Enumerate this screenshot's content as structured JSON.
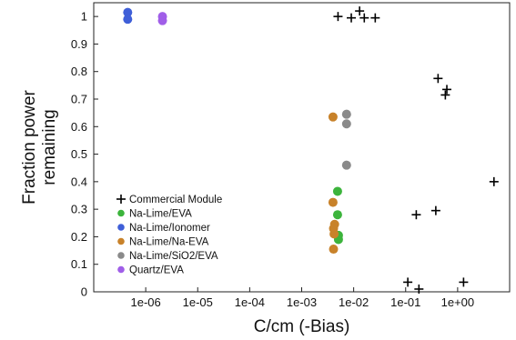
{
  "chart_data": {
    "type": "scatter",
    "title": "",
    "xlabel": "C/cm (-Bias)",
    "ylabel": [
      "Fraction power",
      "remaining"
    ],
    "x_scale": "log",
    "xlim": [
      1e-07,
      10
    ],
    "ylim": [
      0,
      1.05
    ],
    "grid": false,
    "legend_placement": "bottom-left",
    "x_ticks": [
      {
        "value": 1e-06,
        "label": "1e-06"
      },
      {
        "value": 1e-05,
        "label": "1e-05"
      },
      {
        "value": 0.0001,
        "label": "1e-04"
      },
      {
        "value": 0.001,
        "label": "1e-03"
      },
      {
        "value": 0.01,
        "label": "1e-02"
      },
      {
        "value": 0.1,
        "label": "1e-01"
      },
      {
        "value": 1,
        "label": "1e+00"
      }
    ],
    "y_ticks": [
      {
        "value": 0,
        "label": "0"
      },
      {
        "value": 0.1,
        "label": "0.1"
      },
      {
        "value": 0.2,
        "label": "0.2"
      },
      {
        "value": 0.3,
        "label": "0.3"
      },
      {
        "value": 0.4,
        "label": "0.4"
      },
      {
        "value": 0.5,
        "label": "0.5"
      },
      {
        "value": 0.6,
        "label": "0.6"
      },
      {
        "value": 0.7,
        "label": "0.7"
      },
      {
        "value": 0.8,
        "label": "0.8"
      },
      {
        "value": 0.9,
        "label": "0.9"
      },
      {
        "value": 1,
        "label": "1"
      }
    ],
    "series": [
      {
        "name": "Commercial Module",
        "marker": "plus",
        "color": "#000000",
        "points": [
          {
            "x": 0.005,
            "y": 1.0
          },
          {
            "x": 0.009,
            "y": 0.995
          },
          {
            "x": 0.013,
            "y": 1.02
          },
          {
            "x": 0.016,
            "y": 0.995
          },
          {
            "x": 0.026,
            "y": 0.995
          },
          {
            "x": 0.42,
            "y": 0.775
          },
          {
            "x": 0.62,
            "y": 0.735
          },
          {
            "x": 0.58,
            "y": 0.715
          },
          {
            "x": 5.0,
            "y": 0.4
          },
          {
            "x": 0.16,
            "y": 0.28
          },
          {
            "x": 0.38,
            "y": 0.295
          },
          {
            "x": 0.11,
            "y": 0.035
          },
          {
            "x": 0.18,
            "y": 0.01
          },
          {
            "x": 1.3,
            "y": 0.035
          }
        ]
      },
      {
        "name": "Na-Lime/EVA",
        "marker": "circle",
        "color": "#3cb43c",
        "points": [
          {
            "x": 0.0049,
            "y": 0.365
          },
          {
            "x": 0.0049,
            "y": 0.28
          },
          {
            "x": 0.0051,
            "y": 0.205
          },
          {
            "x": 0.0051,
            "y": 0.19
          }
        ]
      },
      {
        "name": "Na-Lime/Ionomer",
        "marker": "circle",
        "color": "#3f5fd8",
        "points": [
          {
            "x": 4.5e-07,
            "y": 1.015
          },
          {
            "x": 4.5e-07,
            "y": 0.99
          }
        ]
      },
      {
        "name": "Na-Lime/Na-EVA",
        "marker": "circle",
        "color": "#c8822a",
        "points": [
          {
            "x": 0.004,
            "y": 0.635
          },
          {
            "x": 0.004,
            "y": 0.325
          },
          {
            "x": 0.0043,
            "y": 0.245
          },
          {
            "x": 0.0041,
            "y": 0.23
          },
          {
            "x": 0.0042,
            "y": 0.21
          },
          {
            "x": 0.0041,
            "y": 0.155
          }
        ]
      },
      {
        "name": "Na-Lime/SiO2/EVA",
        "marker": "circle",
        "color": "#8a8a8a",
        "points": [
          {
            "x": 0.0073,
            "y": 0.645
          },
          {
            "x": 0.0073,
            "y": 0.61
          },
          {
            "x": 0.0073,
            "y": 0.46
          }
        ]
      },
      {
        "name": "Quartz/EVA",
        "marker": "circle",
        "color": "#a05ee8",
        "points": [
          {
            "x": 2.1e-06,
            "y": 1.0
          },
          {
            "x": 2.1e-06,
            "y": 0.985
          }
        ]
      }
    ]
  }
}
